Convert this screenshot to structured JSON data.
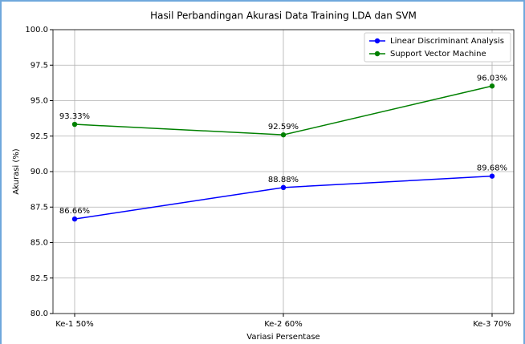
{
  "chart_data": {
    "type": "line",
    "title": "Hasil Perbandingan Akurasi Data Training LDA dan SVM",
    "xlabel": "Variasi Persentase",
    "ylabel": "Akurasi (%)",
    "categories": [
      "Ke-1 50%",
      "Ke-2 60%",
      "Ke-3 70%"
    ],
    "series": [
      {
        "name": "Linear Discriminant Analysis",
        "color": "#0000ff",
        "values": [
          86.66,
          88.88,
          89.68
        ],
        "value_labels": [
          "86.66%",
          "88.88%",
          "89.68%"
        ]
      },
      {
        "name": "Support Vector Machine",
        "color": "#008000",
        "values": [
          93.33,
          92.59,
          96.03
        ],
        "value_labels": [
          "93.33%",
          "92.59%",
          "96.03%"
        ]
      }
    ],
    "ylim": [
      80,
      100
    ],
    "yticks": [
      {
        "value": 80,
        "label": "80.0"
      },
      82.5,
      {
        "value": 85,
        "label": "85.0"
      },
      87.5,
      {
        "value": 90,
        "label": "90.0"
      },
      92.5,
      {
        "value": 95,
        "label": "95.0"
      },
      97.5,
      {
        "value": 100,
        "label": "100.0"
      }
    ],
    "grid": true,
    "legend": "upper right"
  }
}
